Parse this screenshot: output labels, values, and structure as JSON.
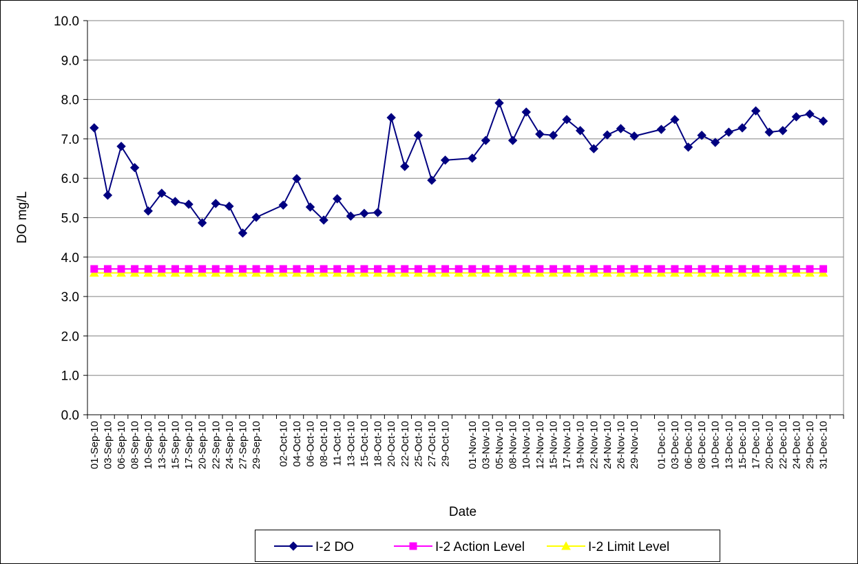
{
  "chart_data": {
    "type": "line",
    "xlabel": "Date",
    "ylabel": "DO mg/L",
    "categories": [
      "01-Sep-10",
      "03-Sep-10",
      "06-Sep-10",
      "08-Sep-10",
      "10-Sep-10",
      "13-Sep-10",
      "15-Sep-10",
      "17-Sep-10",
      "20-Sep-10",
      "22-Sep-10",
      "24-Sep-10",
      "27-Sep-10",
      "29-Sep-10",
      null,
      "02-Oct-10",
      "04-Oct-10",
      "06-Oct-10",
      "08-Oct-10",
      "11-Oct-10",
      "13-Oct-10",
      "15-Oct-10",
      "18-Oct-10",
      "20-Oct-10",
      "22-Oct-10",
      "25-Oct-10",
      "27-Oct-10",
      "29-Oct-10",
      null,
      "01-Nov-10",
      "03-Nov-10",
      "05-Nov-10",
      "08-Nov-10",
      "10-Nov-10",
      "12-Nov-10",
      "15-Nov-10",
      "17-Nov-10",
      "19-Nov-10",
      "22-Nov-10",
      "24-Nov-10",
      "26-Nov-10",
      "29-Nov-10",
      null,
      "01-Dec-10",
      "03-Dec-10",
      "06-Dec-10",
      "08-Dec-10",
      "10-Dec-10",
      "13-Dec-10",
      "15-Dec-10",
      "17-Dec-10",
      "20-Dec-10",
      "22-Dec-10",
      "24-Dec-10",
      "29-Dec-10",
      "31-Dec-10",
      null
    ],
    "series": [
      {
        "name": "I-2 DO",
        "color": "#000080",
        "marker": "diamond",
        "values": [
          7.28,
          5.57,
          6.81,
          6.27,
          5.17,
          5.62,
          5.41,
          5.34,
          4.87,
          5.36,
          5.29,
          4.61,
          5.01,
          null,
          5.32,
          5.99,
          5.27,
          4.94,
          5.48,
          5.04,
          5.11,
          5.13,
          7.54,
          6.3,
          7.09,
          5.95,
          6.46,
          null,
          6.51,
          6.96,
          7.91,
          6.96,
          7.68,
          7.12,
          7.09,
          7.49,
          7.21,
          6.75,
          7.1,
          7.26,
          7.07,
          null,
          7.24,
          7.49,
          6.79,
          7.09,
          6.91,
          7.17,
          7.28,
          7.71,
          7.17,
          7.21,
          7.56,
          7.63,
          7.45,
          null
        ]
      },
      {
        "name": "I-2 Action Level",
        "color": "#ff00ff",
        "marker": "square",
        "values": [
          3.7,
          3.7,
          3.7,
          3.7,
          3.7,
          3.7,
          3.7,
          3.7,
          3.7,
          3.7,
          3.7,
          3.7,
          3.7,
          3.7,
          3.7,
          3.7,
          3.7,
          3.7,
          3.7,
          3.7,
          3.7,
          3.7,
          3.7,
          3.7,
          3.7,
          3.7,
          3.7,
          3.7,
          3.7,
          3.7,
          3.7,
          3.7,
          3.7,
          3.7,
          3.7,
          3.7,
          3.7,
          3.7,
          3.7,
          3.7,
          3.7,
          3.7,
          3.7,
          3.7,
          3.7,
          3.7,
          3.7,
          3.7,
          3.7,
          3.7,
          3.7,
          3.7,
          3.7,
          3.7,
          3.7,
          null
        ]
      },
      {
        "name": "I-2 Limit Level",
        "color": "#ffff00",
        "marker": "triangle",
        "values": [
          3.6,
          3.6,
          3.6,
          3.6,
          3.6,
          3.6,
          3.6,
          3.6,
          3.6,
          3.6,
          3.6,
          3.6,
          3.6,
          3.6,
          3.6,
          3.6,
          3.6,
          3.6,
          3.6,
          3.6,
          3.6,
          3.6,
          3.6,
          3.6,
          3.6,
          3.6,
          3.6,
          3.6,
          3.6,
          3.6,
          3.6,
          3.6,
          3.6,
          3.6,
          3.6,
          3.6,
          3.6,
          3.6,
          3.6,
          3.6,
          3.6,
          3.6,
          3.6,
          3.6,
          3.6,
          3.6,
          3.6,
          3.6,
          3.6,
          3.6,
          3.6,
          3.6,
          3.6,
          3.6,
          3.6,
          null
        ]
      }
    ],
    "connect_gaps": true,
    "ylim": [
      0,
      10
    ],
    "yticks": [
      {
        "value": 0,
        "label": "0.0"
      },
      {
        "value": 1,
        "label": "1.0"
      },
      {
        "value": 2,
        "label": "2.0"
      },
      {
        "value": 3,
        "label": "3.0"
      },
      {
        "value": 4,
        "label": "4.0"
      },
      {
        "value": 5,
        "label": "5.0"
      },
      {
        "value": 6,
        "label": "6.0"
      },
      {
        "value": 7,
        "label": "7.0"
      },
      {
        "value": 8,
        "label": "8.0"
      },
      {
        "value": 9,
        "label": "9.0"
      },
      {
        "value": 10,
        "label": "10.0"
      }
    ],
    "grid": true,
    "legend": "bottom"
  }
}
